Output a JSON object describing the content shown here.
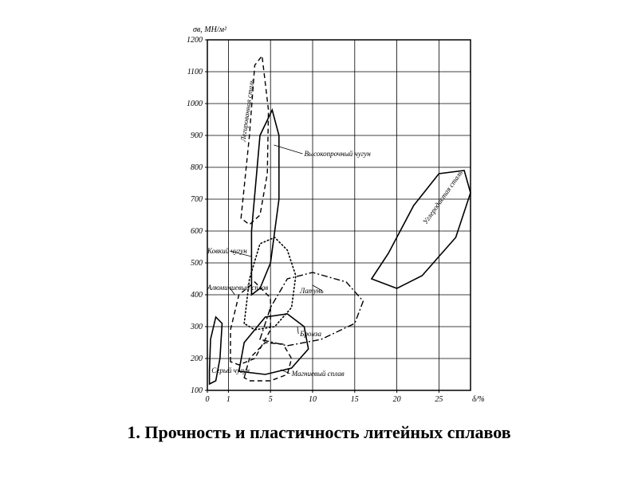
{
  "caption": "1. Прочность и пластичность литейных сплавов",
  "chart": {
    "type": "scatter-region",
    "background_color": "#ffffff",
    "grid_color": "#000000",
    "frame_stroke_width": 1.5,
    "axis": {
      "y": {
        "label": "σв, МН/м²",
        "min": 100,
        "max": 1200,
        "ticks": [
          100,
          200,
          300,
          400,
          500,
          600,
          700,
          800,
          900,
          1000,
          1100,
          1200
        ],
        "label_fontsize": 10
      },
      "x": {
        "label": "δ/%",
        "min": 0,
        "max": 30,
        "ticks": [
          0,
          1,
          5,
          10,
          15,
          20,
          25
        ],
        "label_fontsize": 10
      }
    },
    "tick_fontsize": 10,
    "region_label_fontsize": 9,
    "regions": [
      {
        "name": "Серый чугун",
        "stroke_style": "solid",
        "color": "#000000",
        "points_xy": [
          [
            0.1,
            120
          ],
          [
            0.4,
            130
          ],
          [
            0.6,
            200
          ],
          [
            0.7,
            310
          ],
          [
            0.4,
            330
          ],
          [
            0.15,
            260
          ],
          [
            0.1,
            160
          ],
          [
            0.1,
            120
          ]
        ],
        "label_anchor": [
          0.2,
          155
        ]
      },
      {
        "name": "Легированная сталь",
        "stroke_style": "dash",
        "color": "#000000",
        "points_xy": [
          [
            2.2,
            640
          ],
          [
            3.0,
            900
          ],
          [
            3.5,
            1120
          ],
          [
            4.2,
            1150
          ],
          [
            4.8,
            980
          ],
          [
            4.7,
            780
          ],
          [
            4.0,
            650
          ],
          [
            3.0,
            620
          ],
          [
            2.2,
            640
          ]
        ],
        "label_anchor": [
          2.6,
          880
        ],
        "label_rotate": -82
      },
      {
        "name": "Высокопрочный чугун",
        "stroke_style": "solid",
        "color": "#000000",
        "points_xy": [
          [
            3.2,
            400
          ],
          [
            3.2,
            600
          ],
          [
            4.0,
            900
          ],
          [
            5.2,
            980
          ],
          [
            6.0,
            900
          ],
          [
            6.0,
            700
          ],
          [
            5.0,
            500
          ],
          [
            4.0,
            420
          ],
          [
            3.2,
            400
          ]
        ],
        "label_anchor": [
          9,
          835
        ],
        "leader_to": [
          5.4,
          870
        ]
      },
      {
        "name": "Углеродистая сталь",
        "stroke_style": "solid",
        "color": "#000000",
        "points_xy": [
          [
            17,
            450
          ],
          [
            19,
            530
          ],
          [
            22,
            680
          ],
          [
            25,
            780
          ],
          [
            28,
            790
          ],
          [
            29,
            720
          ],
          [
            27,
            580
          ],
          [
            23,
            460
          ],
          [
            20,
            420
          ],
          [
            17,
            450
          ]
        ],
        "label_anchor": [
          23.5,
          620
        ],
        "label_rotate": -55
      },
      {
        "name": "Ковкий чугун",
        "stroke_style": "dot",
        "color": "#000000",
        "points_xy": [
          [
            2.5,
            310
          ],
          [
            3.0,
            450
          ],
          [
            4.0,
            560
          ],
          [
            5.5,
            580
          ],
          [
            7.0,
            540
          ],
          [
            8.0,
            460
          ],
          [
            7.5,
            360
          ],
          [
            5.5,
            300
          ],
          [
            3.5,
            290
          ],
          [
            2.5,
            310
          ]
        ],
        "label_anchor": [
          0.0,
          530
        ],
        "leader_to": [
          3.2,
          520
        ]
      },
      {
        "name": "Алюминиевый сплав",
        "stroke_style": "dash",
        "color": "#000000",
        "points_xy": [
          [
            1.2,
            190
          ],
          [
            1.2,
            290
          ],
          [
            2.0,
            400
          ],
          [
            3.5,
            440
          ],
          [
            5.0,
            390
          ],
          [
            5.0,
            290
          ],
          [
            3.5,
            200
          ],
          [
            2.0,
            180
          ],
          [
            1.2,
            190
          ]
        ],
        "label_anchor": [
          -1.2,
          415
        ],
        "leader_to": [
          1.6,
          400
        ]
      },
      {
        "name": "Латунь",
        "stroke_style": "dashdot",
        "color": "#000000",
        "points_xy": [
          [
            4.0,
            260
          ],
          [
            5.0,
            360
          ],
          [
            7.0,
            450
          ],
          [
            10.0,
            470
          ],
          [
            14.0,
            440
          ],
          [
            16.0,
            380
          ],
          [
            15.0,
            310
          ],
          [
            11.0,
            260
          ],
          [
            7.0,
            240
          ],
          [
            4.0,
            260
          ]
        ],
        "label_anchor": [
          8.5,
          405
        ],
        "leader_to": [
          10.0,
          430
        ]
      },
      {
        "name": "Бронза",
        "stroke_style": "solid",
        "color": "#000000",
        "points_xy": [
          [
            2.0,
            160
          ],
          [
            2.5,
            250
          ],
          [
            4.5,
            330
          ],
          [
            7.0,
            340
          ],
          [
            9.0,
            300
          ],
          [
            9.5,
            230
          ],
          [
            7.5,
            170
          ],
          [
            4.5,
            150
          ],
          [
            2.0,
            160
          ]
        ],
        "label_anchor": [
          8.5,
          270
        ],
        "leader_to": [
          8.2,
          300
        ]
      },
      {
        "name": "Магниевый сплав",
        "stroke_style": "dash",
        "color": "#000000",
        "points_xy": [
          [
            2.5,
            140
          ],
          [
            3.0,
            200
          ],
          [
            4.5,
            250
          ],
          [
            6.5,
            245
          ],
          [
            7.5,
            200
          ],
          [
            7.0,
            150
          ],
          [
            5.0,
            130
          ],
          [
            3.0,
            130
          ],
          [
            2.5,
            140
          ]
        ],
        "label_anchor": [
          7.5,
          145
        ],
        "leader_to": [
          6.2,
          165
        ]
      }
    ]
  }
}
